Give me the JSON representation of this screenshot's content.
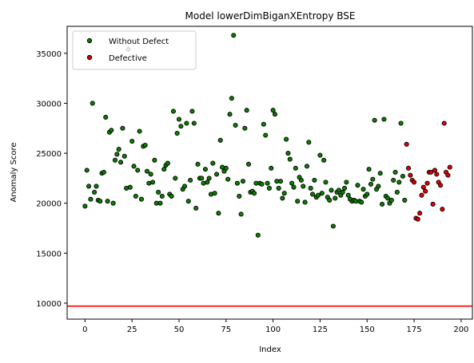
{
  "chart_data": {
    "type": "scatter",
    "title": "Model lowerDimBiganXEntropy BSE",
    "xlabel": "Index",
    "ylabel": "Anomaly Score",
    "xlim": [
      -9.5,
      206
    ],
    "ylim": [
      8400,
      37700
    ],
    "xticks": [
      0,
      25,
      50,
      75,
      100,
      125,
      150,
      175,
      200
    ],
    "yticks": [
      10000,
      15000,
      20000,
      25000,
      30000,
      35000
    ],
    "grid": false,
    "legend_position": "top-left",
    "threshold": {
      "value": 9700,
      "color": "#ff0000"
    },
    "series": [
      {
        "name": "Without Defect",
        "color": "#0b8000",
        "x": [
          0,
          1,
          2,
          3,
          4,
          5,
          6,
          7,
          8,
          9,
          10,
          11,
          12,
          13,
          14,
          15,
          16,
          17,
          18,
          19,
          20,
          21,
          22,
          23,
          24,
          25,
          26,
          27,
          28,
          29,
          30,
          31,
          32,
          33,
          34,
          35,
          36,
          37,
          38,
          39,
          40,
          41,
          42,
          43,
          44,
          45,
          46,
          47,
          48,
          49,
          50,
          51,
          52,
          53,
          54,
          55,
          56,
          57,
          58,
          59,
          60,
          61,
          62,
          63,
          64,
          65,
          66,
          67,
          68,
          69,
          70,
          71,
          72,
          73,
          74,
          75,
          76,
          77,
          78,
          79,
          80,
          81,
          82,
          83,
          84,
          85,
          86,
          87,
          88,
          89,
          90,
          91,
          92,
          93,
          94,
          95,
          96,
          97,
          98,
          99,
          100,
          101,
          102,
          103,
          104,
          105,
          106,
          107,
          108,
          109,
          110,
          111,
          112,
          113,
          114,
          115,
          116,
          117,
          118,
          119,
          120,
          121,
          122,
          123,
          124,
          125,
          126,
          127,
          128,
          129,
          130,
          131,
          132,
          133,
          134,
          135,
          136,
          137,
          138,
          139,
          140,
          141,
          142,
          143,
          144,
          145,
          146,
          147,
          148,
          149,
          150,
          151,
          152,
          153,
          154,
          155,
          156,
          157,
          158,
          159,
          160,
          161,
          162,
          163,
          164,
          165,
          166,
          167,
          168,
          169,
          170
        ],
        "y": [
          19700,
          23300,
          21700,
          20400,
          30000,
          21100,
          21700,
          20300,
          20200,
          23000,
          23100,
          28600,
          20200,
          27100,
          27300,
          20000,
          24300,
          24900,
          25400,
          24100,
          27500,
          24700,
          21500,
          35400,
          21600,
          26200,
          23700,
          20700,
          23300,
          27200,
          20400,
          25700,
          25800,
          23200,
          22000,
          22900,
          22100,
          24300,
          20000,
          21100,
          20000,
          20700,
          23400,
          23800,
          24000,
          20900,
          20700,
          29200,
          22500,
          27000,
          28400,
          27700,
          21400,
          21700,
          28000,
          20200,
          22300,
          29200,
          28000,
          19500,
          23900,
          22500,
          22500,
          22000,
          23400,
          22100,
          22500,
          20900,
          24000,
          21000,
          22900,
          19000,
          26300,
          23600,
          23200,
          23500,
          22400,
          28900,
          30500,
          36800,
          27800,
          22000,
          20700,
          18900,
          22200,
          27500,
          29300,
          23900,
          21100,
          21200,
          21000,
          22000,
          16800,
          22000,
          21900,
          27900,
          26800,
          22000,
          21500,
          23500,
          29300,
          28900,
          22200,
          21500,
          22200,
          20500,
          21000,
          26400,
          25000,
          24400,
          22000,
          21600,
          23500,
          20200,
          22600,
          22300,
          21700,
          20100,
          23700,
          26100,
          21500,
          20900,
          22300,
          20600,
          20800,
          24800,
          21000,
          24300,
          22100,
          20600,
          20300,
          21300,
          17700,
          20500,
          21100,
          21300,
          20800,
          21100,
          21500,
          22100,
          20800,
          20400,
          20200,
          20300,
          20200,
          21800,
          20200,
          20100,
          21400,
          20700,
          20900,
          23400,
          21900,
          22400,
          28300,
          21400,
          21700,
          23000,
          19900,
          28400,
          20700,
          20500,
          20000,
          20300,
          22300,
          23100,
          21100,
          22100,
          28000,
          22700,
          20300
        ]
      },
      {
        "name": "Defective",
        "color": "#e60000",
        "x": [
          171,
          172,
          173,
          174,
          175,
          176,
          177,
          178,
          179,
          180,
          181,
          182,
          183,
          184,
          185,
          186,
          187,
          188,
          189,
          190,
          191,
          192,
          193,
          194
        ],
        "y": [
          25900,
          23500,
          22800,
          22300,
          22100,
          18500,
          18400,
          19000,
          20800,
          21600,
          21200,
          22000,
          23100,
          23100,
          19900,
          23300,
          22900,
          22100,
          21800,
          19400,
          28000,
          23100,
          22800,
          23600
        ]
      }
    ]
  }
}
